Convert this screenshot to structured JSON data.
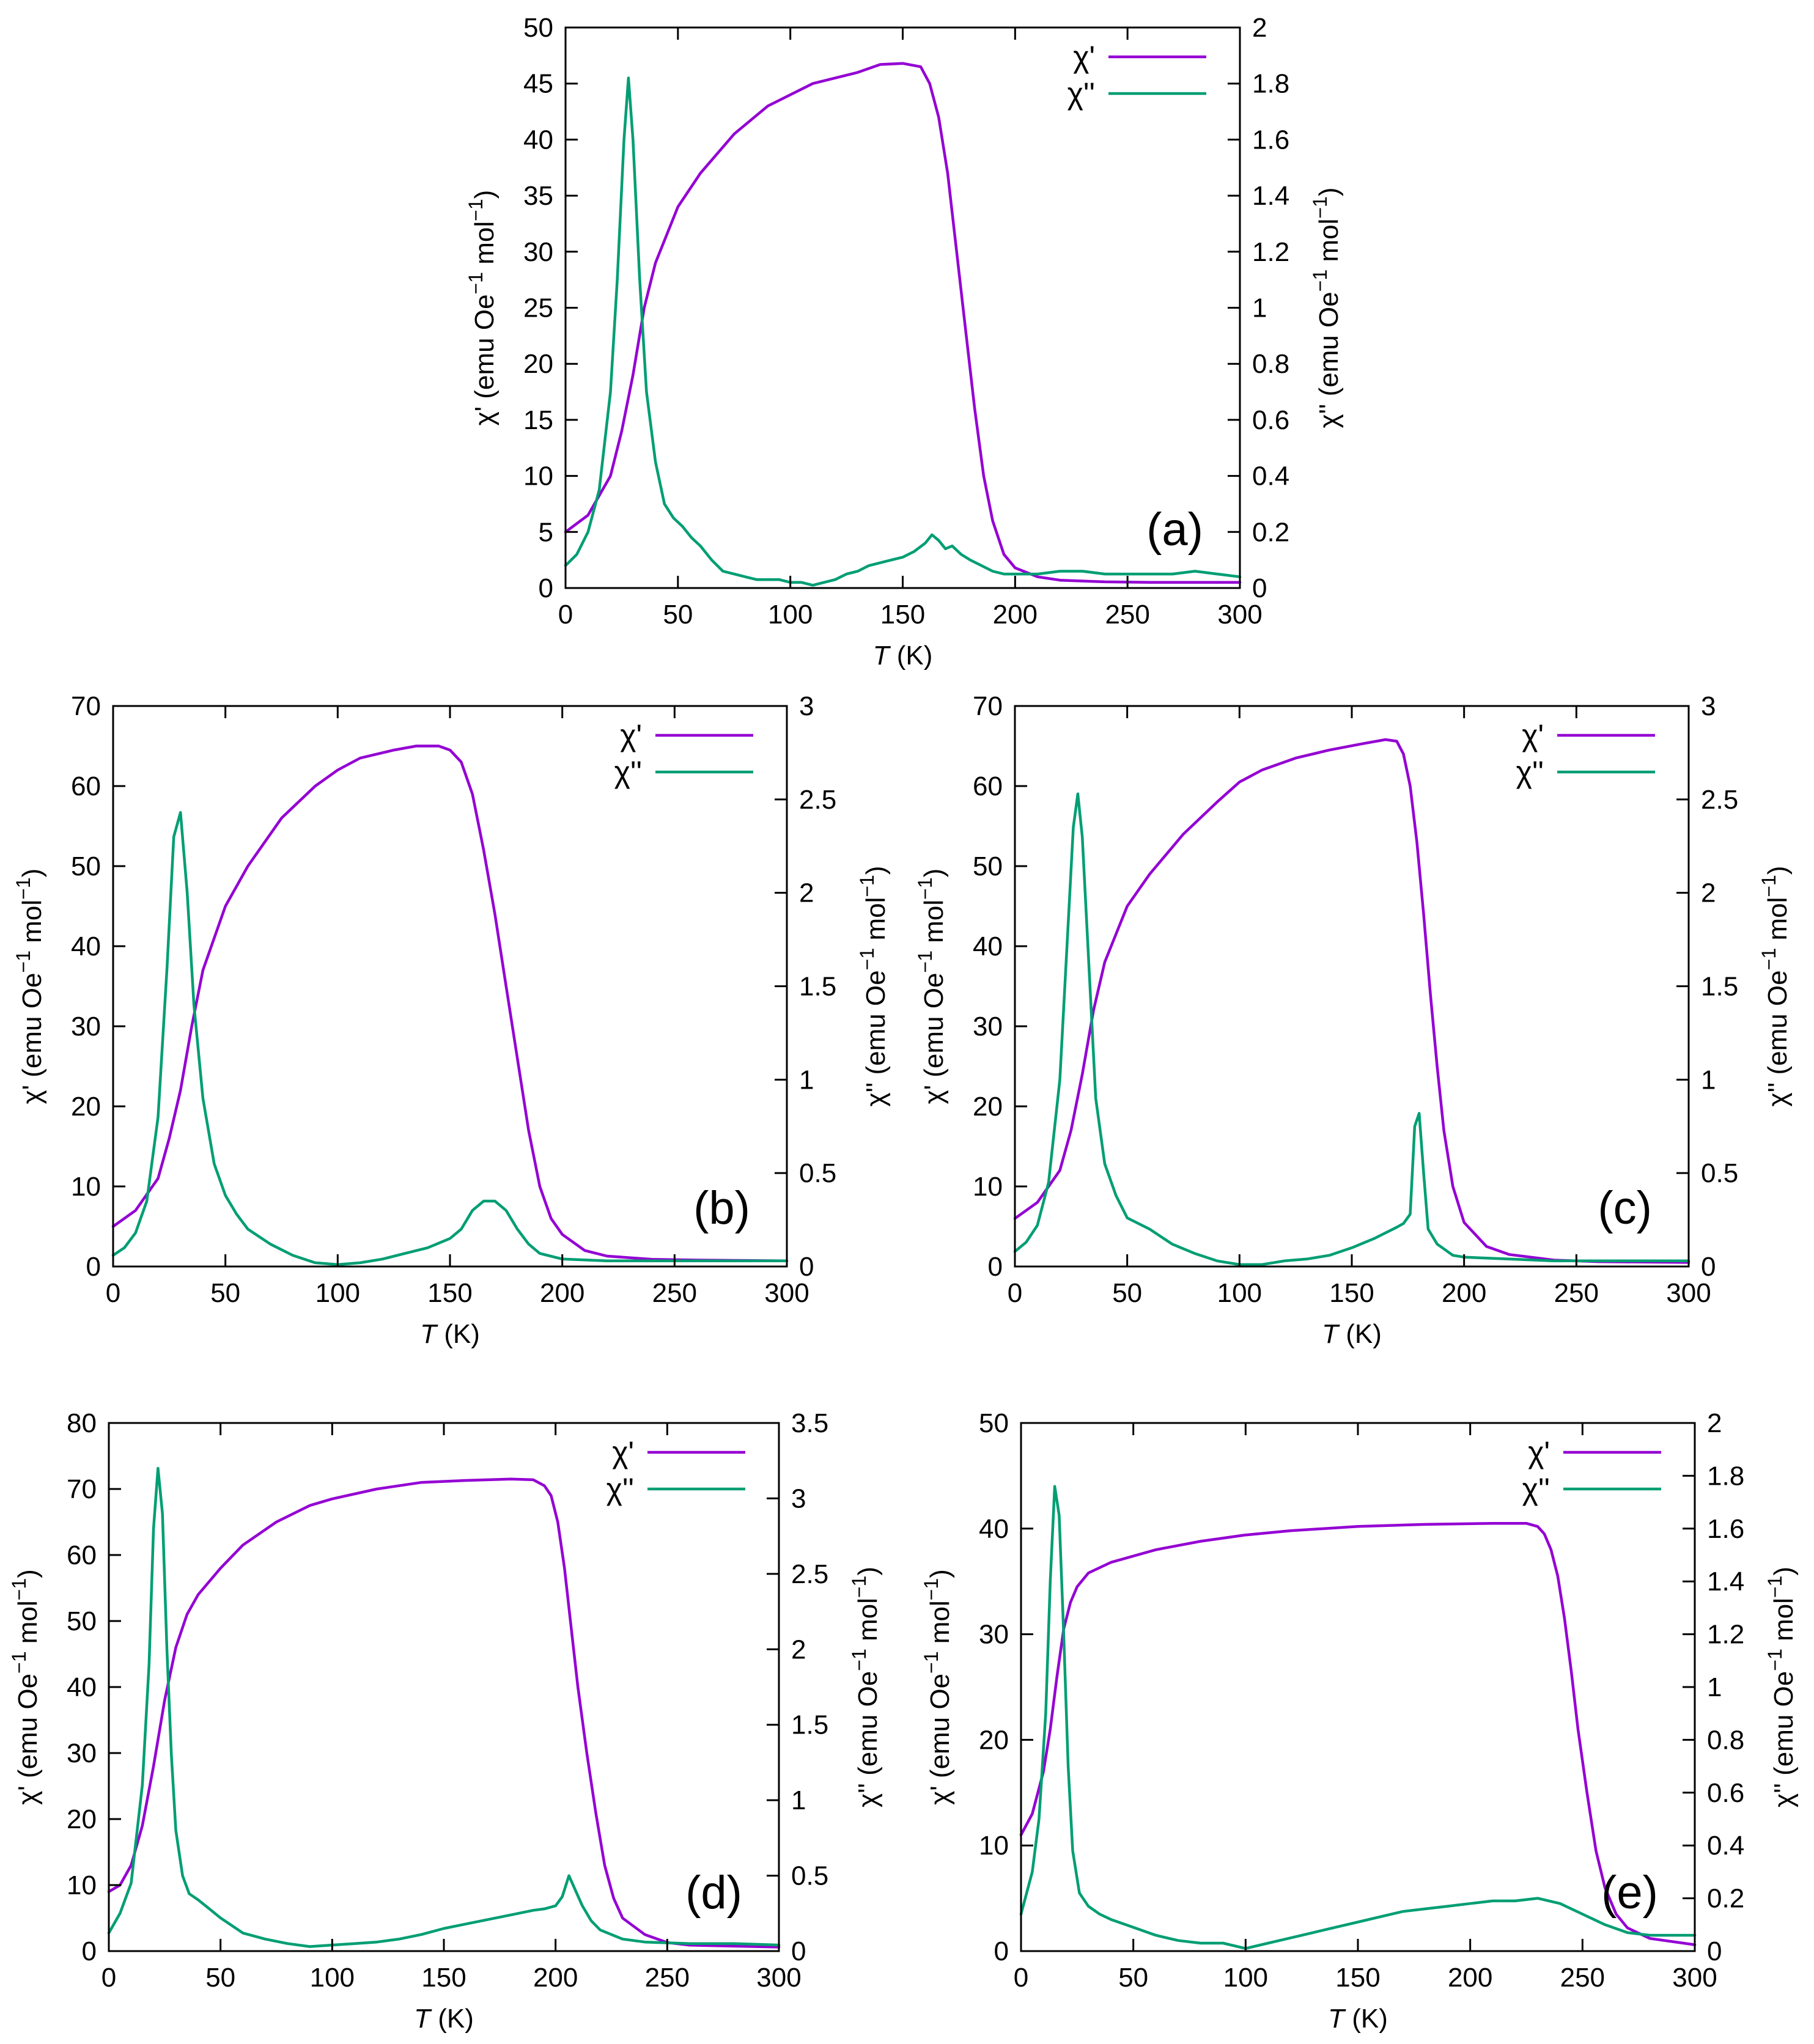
{
  "colors": {
    "chi_prime": "#9400D3",
    "chi_double_prime": "#009E73",
    "axis": "#000000"
  },
  "legend": {
    "chi_prime": "χ'",
    "chi_double_prime": "χ''",
    "position": "top-right"
  },
  "axis_text": {
    "xlabel_italic": "T",
    "xlabel_unit": " (K)",
    "y1_prefix": "χ' (emu Oe",
    "y2_prefix": "χ'' (emu Oe",
    "exp": "−1",
    "mid": " mol",
    "close": ")"
  },
  "chart_data": [
    {
      "type": "line",
      "panel": "(a)",
      "xlim": [
        0,
        300
      ],
      "xticks": [
        0,
        50,
        100,
        150,
        200,
        250,
        300
      ],
      "y1lim": [
        0,
        50
      ],
      "y1ticks": [
        0,
        5,
        10,
        15,
        20,
        25,
        30,
        35,
        40,
        45,
        50
      ],
      "y2lim": [
        0,
        2
      ],
      "y2ticks": [
        0,
        0.2,
        0.4,
        0.6,
        0.8,
        1,
        1.2,
        1.4,
        1.6,
        1.8,
        2
      ],
      "series": [
        {
          "name": "χ'",
          "axis": "left",
          "x": [
            0,
            10,
            20,
            25,
            30,
            35,
            40,
            50,
            60,
            75,
            90,
            100,
            110,
            130,
            140,
            150,
            158,
            162,
            166,
            170,
            174,
            178,
            182,
            186,
            190,
            195,
            200,
            210,
            220,
            240,
            260,
            300
          ],
          "y": [
            5,
            6.5,
            10,
            14,
            19,
            25,
            29,
            34,
            37,
            40.5,
            43,
            44,
            45,
            46,
            46.7,
            46.8,
            46.5,
            45,
            42,
            37,
            30,
            23,
            16,
            10,
            6,
            3,
            1.8,
            1,
            0.7,
            0.55,
            0.5,
            0.5
          ]
        },
        {
          "name": "χ''",
          "axis": "right",
          "x": [
            0,
            5,
            10,
            15,
            20,
            23,
            26,
            28,
            30,
            33,
            36,
            40,
            44,
            48,
            52,
            56,
            60,
            65,
            70,
            75,
            80,
            85,
            90,
            95,
            100,
            105,
            110,
            115,
            120,
            125,
            130,
            135,
            140,
            145,
            150,
            155,
            160,
            163,
            166,
            169,
            172,
            176,
            180,
            185,
            190,
            195,
            200,
            210,
            220,
            230,
            240,
            250,
            260,
            270,
            280,
            290,
            300
          ],
          "y": [
            0.08,
            0.12,
            0.2,
            0.35,
            0.7,
            1.1,
            1.6,
            1.82,
            1.6,
            1.1,
            0.7,
            0.45,
            0.3,
            0.25,
            0.22,
            0.18,
            0.15,
            0.1,
            0.06,
            0.05,
            0.04,
            0.03,
            0.03,
            0.03,
            0.02,
            0.02,
            0.01,
            0.02,
            0.03,
            0.05,
            0.06,
            0.08,
            0.09,
            0.1,
            0.11,
            0.13,
            0.16,
            0.19,
            0.17,
            0.14,
            0.15,
            0.12,
            0.1,
            0.08,
            0.06,
            0.05,
            0.05,
            0.05,
            0.06,
            0.06,
            0.05,
            0.05,
            0.05,
            0.05,
            0.06,
            0.05,
            0.04
          ]
        }
      ]
    },
    {
      "type": "line",
      "panel": "(b)",
      "xlim": [
        0,
        300
      ],
      "xticks": [
        0,
        50,
        100,
        150,
        200,
        250,
        300
      ],
      "y1lim": [
        0,
        70
      ],
      "y1ticks": [
        0,
        10,
        20,
        30,
        40,
        50,
        60,
        70
      ],
      "y2lim": [
        0,
        3
      ],
      "y2ticks": [
        0,
        0.5,
        1,
        1.5,
        2,
        2.5,
        3
      ],
      "series": [
        {
          "name": "χ'",
          "axis": "left",
          "x": [
            0,
            10,
            20,
            25,
            30,
            35,
            40,
            50,
            60,
            75,
            90,
            100,
            110,
            125,
            135,
            140,
            145,
            150,
            155,
            160,
            165,
            170,
            175,
            180,
            185,
            190,
            195,
            200,
            210,
            220,
            240,
            260,
            300
          ],
          "y": [
            5,
            7,
            11,
            16,
            22,
            30,
            37,
            45,
            50,
            56,
            60,
            62,
            63.5,
            64.5,
            65,
            65,
            65,
            64.5,
            63,
            59,
            52,
            44,
            35,
            26,
            17,
            10,
            6,
            4,
            2,
            1.3,
            0.9,
            0.8,
            0.7
          ]
        },
        {
          "name": "χ''",
          "axis": "right",
          "x": [
            0,
            5,
            10,
            15,
            20,
            24,
            27,
            30,
            33,
            36,
            40,
            45,
            50,
            55,
            60,
            65,
            70,
            80,
            90,
            100,
            110,
            120,
            130,
            140,
            150,
            155,
            160,
            165,
            170,
            175,
            180,
            185,
            190,
            200,
            220,
            240,
            260,
            280,
            300
          ],
          "y": [
            0.06,
            0.1,
            0.18,
            0.35,
            0.8,
            1.6,
            2.3,
            2.43,
            2.0,
            1.4,
            0.9,
            0.55,
            0.38,
            0.28,
            0.2,
            0.16,
            0.12,
            0.06,
            0.02,
            0.01,
            0.02,
            0.04,
            0.07,
            0.1,
            0.15,
            0.2,
            0.3,
            0.35,
            0.35,
            0.3,
            0.2,
            0.12,
            0.07,
            0.04,
            0.03,
            0.03,
            0.03,
            0.03,
            0.03
          ]
        }
      ]
    },
    {
      "type": "line",
      "panel": "(c)",
      "xlim": [
        0,
        300
      ],
      "xticks": [
        0,
        50,
        100,
        150,
        200,
        250,
        300
      ],
      "y1lim": [
        0,
        70
      ],
      "y1ticks": [
        0,
        10,
        20,
        30,
        40,
        50,
        60,
        70
      ],
      "y2lim": [
        0,
        3
      ],
      "y2ticks": [
        0,
        0.5,
        1,
        1.5,
        2,
        2.5,
        3
      ],
      "series": [
        {
          "name": "χ'",
          "axis": "left",
          "x": [
            0,
            10,
            20,
            25,
            30,
            35,
            40,
            50,
            60,
            75,
            90,
            100,
            110,
            125,
            140,
            155,
            165,
            170,
            173,
            176,
            179,
            182,
            185,
            188,
            191,
            195,
            200,
            210,
            220,
            240,
            260,
            300
          ],
          "y": [
            6,
            8,
            12,
            17,
            24,
            32,
            38,
            45,
            49,
            54,
            58,
            60.5,
            62,
            63.5,
            64.5,
            65.3,
            65.8,
            65.6,
            64,
            60,
            53,
            44,
            34,
            25,
            17,
            10,
            5.5,
            2.5,
            1.5,
            0.8,
            0.6,
            0.5
          ]
        },
        {
          "name": "χ''",
          "axis": "right",
          "x": [
            0,
            5,
            10,
            15,
            20,
            24,
            26,
            28,
            30,
            33,
            36,
            40,
            45,
            50,
            60,
            70,
            80,
            90,
            100,
            110,
            120,
            130,
            140,
            150,
            160,
            165,
            170,
            173,
            176,
            178,
            180,
            182,
            184,
            188,
            195,
            200,
            220,
            240,
            260,
            280,
            300
          ],
          "y": [
            0.08,
            0.13,
            0.22,
            0.45,
            1.0,
            1.9,
            2.35,
            2.53,
            2.3,
            1.6,
            0.9,
            0.55,
            0.38,
            0.26,
            0.2,
            0.12,
            0.07,
            0.03,
            0.01,
            0.01,
            0.03,
            0.04,
            0.06,
            0.1,
            0.15,
            0.18,
            0.21,
            0.23,
            0.28,
            0.75,
            0.82,
            0.5,
            0.2,
            0.12,
            0.06,
            0.05,
            0.04,
            0.03,
            0.03,
            0.03,
            0.03
          ]
        }
      ]
    },
    {
      "type": "line",
      "panel": "(d)",
      "xlim": [
        0,
        300
      ],
      "xticks": [
        0,
        50,
        100,
        150,
        200,
        250,
        300
      ],
      "y1lim": [
        0,
        80
      ],
      "y1ticks": [
        0,
        10,
        20,
        30,
        40,
        50,
        60,
        70,
        80
      ],
      "y2lim": [
        0,
        3.5
      ],
      "y2ticks": [
        0,
        0.5,
        1,
        1.5,
        2,
        2.5,
        3,
        3.5
      ],
      "series": [
        {
          "name": "χ'",
          "axis": "left",
          "x": [
            0,
            5,
            10,
            15,
            20,
            25,
            30,
            35,
            40,
            50,
            60,
            75,
            90,
            100,
            120,
            140,
            160,
            180,
            190,
            195,
            198,
            201,
            204,
            207,
            210,
            214,
            218,
            222,
            226,
            230,
            240,
            250,
            260,
            300
          ],
          "y": [
            9,
            10,
            13,
            19,
            28,
            38,
            46,
            51,
            54,
            58,
            61.5,
            65,
            67.5,
            68.5,
            70,
            71,
            71.3,
            71.5,
            71.4,
            70.5,
            69,
            65,
            58,
            49,
            40,
            30,
            21,
            13,
            8,
            5,
            2.5,
            1.3,
            0.9,
            0.6
          ]
        },
        {
          "name": "χ''",
          "axis": "right",
          "x": [
            0,
            5,
            10,
            15,
            18,
            20,
            22,
            24,
            26,
            28,
            30,
            33,
            36,
            40,
            45,
            50,
            55,
            60,
            70,
            80,
            90,
            100,
            110,
            120,
            130,
            140,
            150,
            160,
            170,
            180,
            190,
            195,
            200,
            203,
            206,
            209,
            212,
            216,
            220,
            230,
            240,
            260,
            280,
            300
          ],
          "y": [
            0.12,
            0.25,
            0.45,
            1.1,
            1.9,
            2.8,
            3.2,
            2.9,
            2.0,
            1.3,
            0.8,
            0.5,
            0.38,
            0.34,
            0.28,
            0.22,
            0.17,
            0.12,
            0.08,
            0.05,
            0.03,
            0.04,
            0.05,
            0.06,
            0.08,
            0.11,
            0.15,
            0.18,
            0.21,
            0.24,
            0.27,
            0.28,
            0.3,
            0.36,
            0.5,
            0.4,
            0.3,
            0.2,
            0.14,
            0.08,
            0.06,
            0.05,
            0.05,
            0.04
          ]
        }
      ]
    },
    {
      "type": "line",
      "panel": "(e)",
      "xlim": [
        0,
        300
      ],
      "xticks": [
        0,
        50,
        100,
        150,
        200,
        250,
        300
      ],
      "y1lim": [
        0,
        50
      ],
      "y1ticks": [
        0,
        10,
        20,
        30,
        40,
        50
      ],
      "y2lim": [
        0,
        2
      ],
      "y2ticks": [
        0,
        0.2,
        0.4,
        0.6,
        0.8,
        1,
        1.2,
        1.4,
        1.6,
        1.8,
        2
      ],
      "series": [
        {
          "name": "χ'",
          "axis": "left",
          "x": [
            0,
            5,
            10,
            13,
            16,
            19,
            22,
            25,
            30,
            40,
            60,
            80,
            100,
            120,
            150,
            180,
            210,
            225,
            230,
            233,
            236,
            239,
            242,
            245,
            248,
            252,
            256,
            260,
            265,
            270,
            280,
            300
          ],
          "y": [
            11,
            13,
            17,
            21,
            26,
            30.5,
            33,
            34.5,
            35.8,
            36.8,
            38,
            38.8,
            39.4,
            39.8,
            40.2,
            40.4,
            40.5,
            40.5,
            40.2,
            39.5,
            38,
            35.5,
            31.5,
            26.5,
            21,
            15,
            9.5,
            6,
            3.5,
            2.2,
            1.2,
            0.6
          ]
        },
        {
          "name": "χ''",
          "axis": "right",
          "x": [
            0,
            5,
            8,
            11,
            13,
            15,
            17,
            19,
            21,
            23,
            26,
            30,
            35,
            40,
            50,
            60,
            70,
            80,
            90,
            100,
            110,
            120,
            130,
            140,
            150,
            160,
            170,
            180,
            190,
            200,
            210,
            220,
            230,
            240,
            250,
            260,
            270,
            280,
            290,
            300
          ],
          "y": [
            0.14,
            0.3,
            0.5,
            0.9,
            1.4,
            1.76,
            1.65,
            1.2,
            0.7,
            0.38,
            0.22,
            0.17,
            0.14,
            0.12,
            0.09,
            0.06,
            0.04,
            0.03,
            0.03,
            0.01,
            0.03,
            0.05,
            0.07,
            0.09,
            0.11,
            0.13,
            0.15,
            0.16,
            0.17,
            0.18,
            0.19,
            0.19,
            0.2,
            0.18,
            0.14,
            0.1,
            0.07,
            0.06,
            0.06,
            0.06
          ]
        }
      ]
    }
  ]
}
